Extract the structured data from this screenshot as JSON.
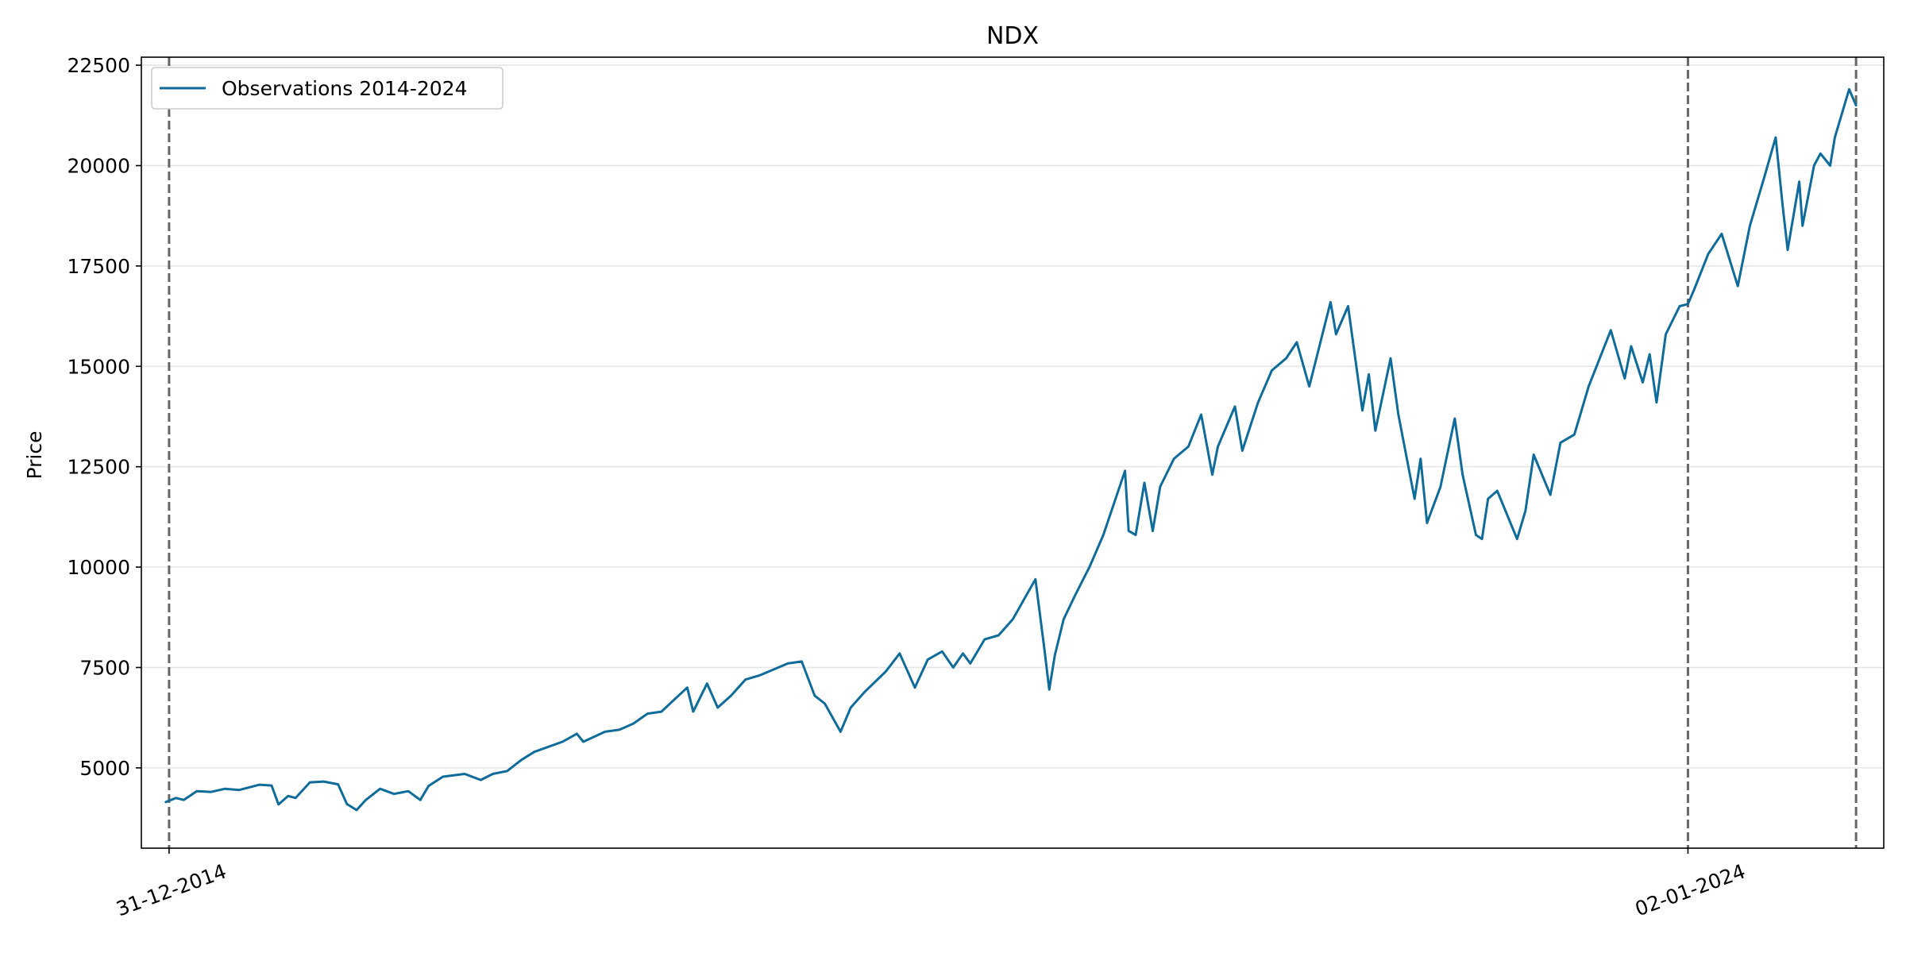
{
  "chart_data": {
    "type": "line",
    "title": "NDX",
    "xlabel": "",
    "ylabel": "Price",
    "ylim": [
      3000,
      22700
    ],
    "yticks": [
      5000,
      7500,
      10000,
      12500,
      15000,
      17500,
      20000,
      22500
    ],
    "xlim": [
      "2014-11-01",
      "2025-03-01"
    ],
    "xticks": [
      {
        "date": "2014-12-31",
        "label": "31-12-2014"
      },
      {
        "date": "2024-01-02",
        "label": "02-01-2024"
      }
    ],
    "vlines": [
      "2014-12-31",
      "2024-01-02",
      "2024-12-31"
    ],
    "grid": "horizontal",
    "legend_position": "upper-left",
    "series": [
      {
        "name": "Observations 2014-2024",
        "color": "#0f6b99",
        "style": "solid",
        "points": [
          [
            "2014-12-24",
            4150
          ],
          [
            "2015-01-15",
            4250
          ],
          [
            "2015-02-01",
            4200
          ],
          [
            "2015-03-01",
            4420
          ],
          [
            "2015-04-01",
            4400
          ],
          [
            "2015-05-01",
            4480
          ],
          [
            "2015-06-01",
            4450
          ],
          [
            "2015-07-15",
            4580
          ],
          [
            "2015-08-10",
            4560
          ],
          [
            "2015-08-25",
            4090
          ],
          [
            "2015-09-15",
            4300
          ],
          [
            "2015-10-01",
            4250
          ],
          [
            "2015-11-01",
            4640
          ],
          [
            "2015-12-01",
            4660
          ],
          [
            "2016-01-01",
            4590
          ],
          [
            "2016-01-20",
            4100
          ],
          [
            "2016-02-10",
            3950
          ],
          [
            "2016-03-01",
            4200
          ],
          [
            "2016-04-01",
            4480
          ],
          [
            "2016-05-01",
            4350
          ],
          [
            "2016-06-01",
            4420
          ],
          [
            "2016-06-27",
            4200
          ],
          [
            "2016-07-15",
            4550
          ],
          [
            "2016-08-15",
            4780
          ],
          [
            "2016-10-01",
            4850
          ],
          [
            "2016-11-05",
            4700
          ],
          [
            "2016-12-01",
            4850
          ],
          [
            "2017-01-01",
            4920
          ],
          [
            "2017-02-01",
            5200
          ],
          [
            "2017-03-01",
            5400
          ],
          [
            "2017-05-01",
            5650
          ],
          [
            "2017-06-01",
            5850
          ],
          [
            "2017-06-15",
            5650
          ],
          [
            "2017-08-01",
            5900
          ],
          [
            "2017-09-01",
            5950
          ],
          [
            "2017-10-01",
            6100
          ],
          [
            "2017-11-01",
            6350
          ],
          [
            "2017-12-01",
            6400
          ],
          [
            "2018-01-26",
            7000
          ],
          [
            "2018-02-08",
            6400
          ],
          [
            "2018-03-10",
            7100
          ],
          [
            "2018-04-02",
            6500
          ],
          [
            "2018-05-01",
            6800
          ],
          [
            "2018-06-01",
            7200
          ],
          [
            "2018-07-01",
            7300
          ],
          [
            "2018-08-01",
            7450
          ],
          [
            "2018-09-01",
            7600
          ],
          [
            "2018-10-01",
            7650
          ],
          [
            "2018-10-29",
            6800
          ],
          [
            "2018-11-20",
            6600
          ],
          [
            "2018-12-24",
            5900
          ],
          [
            "2019-01-15",
            6500
          ],
          [
            "2019-02-15",
            6900
          ],
          [
            "2019-04-01",
            7400
          ],
          [
            "2019-05-01",
            7850
          ],
          [
            "2019-06-03",
            7000
          ],
          [
            "2019-07-01",
            7700
          ],
          [
            "2019-08-01",
            7900
          ],
          [
            "2019-08-25",
            7500
          ],
          [
            "2019-09-15",
            7850
          ],
          [
            "2019-10-01",
            7600
          ],
          [
            "2019-11-01",
            8200
          ],
          [
            "2019-12-01",
            8300
          ],
          [
            "2020-01-01",
            8700
          ],
          [
            "2020-02-19",
            9700
          ],
          [
            "2020-03-09",
            8000
          ],
          [
            "2020-03-20",
            6950
          ],
          [
            "2020-04-01",
            7800
          ],
          [
            "2020-04-20",
            8700
          ],
          [
            "2020-05-15",
            9300
          ],
          [
            "2020-06-15",
            10000
          ],
          [
            "2020-07-15",
            10800
          ],
          [
            "2020-08-31",
            12400
          ],
          [
            "2020-09-08",
            10900
          ],
          [
            "2020-09-23",
            10800
          ],
          [
            "2020-10-12",
            12100
          ],
          [
            "2020-10-30",
            10900
          ],
          [
            "2020-11-15",
            12000
          ],
          [
            "2020-12-15",
            12700
          ],
          [
            "2021-01-15",
            13000
          ],
          [
            "2021-02-12",
            13800
          ],
          [
            "2021-03-08",
            12300
          ],
          [
            "2021-03-20",
            13000
          ],
          [
            "2021-04-26",
            14000
          ],
          [
            "2021-05-12",
            12900
          ],
          [
            "2021-06-15",
            14100
          ],
          [
            "2021-07-15",
            14900
          ],
          [
            "2021-08-15",
            15200
          ],
          [
            "2021-09-07",
            15600
          ],
          [
            "2021-10-04",
            14500
          ],
          [
            "2021-11-19",
            16600
          ],
          [
            "2021-12-01",
            15800
          ],
          [
            "2021-12-27",
            16500
          ],
          [
            "2022-01-27",
            13900
          ],
          [
            "2022-02-10",
            14800
          ],
          [
            "2022-02-24",
            13400
          ],
          [
            "2022-03-29",
            15200
          ],
          [
            "2022-04-15",
            13800
          ],
          [
            "2022-05-20",
            11700
          ],
          [
            "2022-06-02",
            12700
          ],
          [
            "2022-06-16",
            11100
          ],
          [
            "2022-07-15",
            12000
          ],
          [
            "2022-08-15",
            13700
          ],
          [
            "2022-09-01",
            12300
          ],
          [
            "2022-09-30",
            10800
          ],
          [
            "2022-10-13",
            10700
          ],
          [
            "2022-10-26",
            11700
          ],
          [
            "2022-11-15",
            11900
          ],
          [
            "2022-12-28",
            10700
          ],
          [
            "2023-01-15",
            11400
          ],
          [
            "2023-02-02",
            12800
          ],
          [
            "2023-03-10",
            11800
          ],
          [
            "2023-04-01",
            13100
          ],
          [
            "2023-05-01",
            13300
          ],
          [
            "2023-06-01",
            14500
          ],
          [
            "2023-07-19",
            15900
          ],
          [
            "2023-08-18",
            14700
          ],
          [
            "2023-09-01",
            15500
          ],
          [
            "2023-09-26",
            14600
          ],
          [
            "2023-10-11",
            15300
          ],
          [
            "2023-10-26",
            14100
          ],
          [
            "2023-11-15",
            15800
          ],
          [
            "2023-12-15",
            16500
          ],
          [
            "2024-01-02",
            16550
          ],
          [
            "2024-01-15",
            16900
          ],
          [
            "2024-02-15",
            17800
          ],
          [
            "2024-03-15",
            18300
          ],
          [
            "2024-04-19",
            17000
          ],
          [
            "2024-05-15",
            18500
          ],
          [
            "2024-06-15",
            19700
          ],
          [
            "2024-07-10",
            20700
          ],
          [
            "2024-07-25",
            19000
          ],
          [
            "2024-08-05",
            17900
          ],
          [
            "2024-08-30",
            19600
          ],
          [
            "2024-09-06",
            18500
          ],
          [
            "2024-10-01",
            20000
          ],
          [
            "2024-10-15",
            20300
          ],
          [
            "2024-11-05",
            20000
          ],
          [
            "2024-11-15",
            20700
          ],
          [
            "2024-12-16",
            21900
          ],
          [
            "2024-12-31",
            21500
          ]
        ]
      }
    ]
  }
}
